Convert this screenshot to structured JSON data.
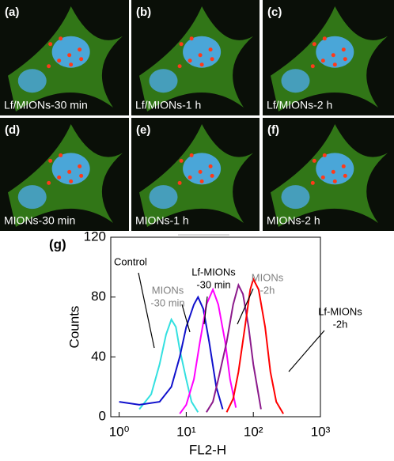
{
  "panels": [
    {
      "label": "(a)",
      "caption": "Lf/MIONs-30 min"
    },
    {
      "label": "(b)",
      "caption": "Lf/MIONs-1 h"
    },
    {
      "label": "(c)",
      "caption": "Lf/MIONs-2 h"
    },
    {
      "label": "(d)",
      "caption": "MIONs-30 min"
    },
    {
      "label": "(e)",
      "caption": "MIONs-1 h"
    },
    {
      "label": "(f)",
      "caption": "MIONs-2 h"
    }
  ],
  "chart_data": {
    "type": "line",
    "panel_label": "(g)",
    "x_label": "FL2-H",
    "y_label": "Counts",
    "xlog": true,
    "xlim": [
      0.75,
      1000
    ],
    "xticks": [
      {
        "value": 1,
        "label": "10⁰"
      },
      {
        "value": 10,
        "label": "10¹"
      },
      {
        "value": 100,
        "label": "10²"
      },
      {
        "value": 1000,
        "label": "10³"
      }
    ],
    "ylim": [
      0,
      120
    ],
    "yticks": [
      0,
      40,
      80,
      120
    ],
    "series": [
      {
        "name": "Control",
        "color": "#33e0e0",
        "x": [
          2,
          3,
          4,
          5,
          6,
          7,
          8,
          10,
          12,
          15
        ],
        "values": [
          5,
          15,
          35,
          55,
          65,
          60,
          45,
          25,
          10,
          3
        ]
      },
      {
        "name": "MIONs -30 min",
        "color": "#1010cc",
        "x": [
          1,
          2,
          4,
          6,
          8,
          10,
          13,
          15,
          18,
          22,
          28,
          35
        ],
        "values": [
          10,
          8,
          10,
          20,
          40,
          60,
          75,
          80,
          72,
          50,
          20,
          5
        ]
      },
      {
        "name": "Lf-MIONs -30 min",
        "color": "#ff00ff",
        "x": [
          8,
          10,
          13,
          16,
          20,
          25,
          30,
          38,
          45,
          55
        ],
        "values": [
          2,
          8,
          25,
          50,
          75,
          85,
          75,
          50,
          25,
          6
        ]
      },
      {
        "name": "MIONs -2h",
        "color": "#8b1a8b",
        "x": [
          20,
          25,
          30,
          40,
          50,
          60,
          70,
          85,
          100,
          130
        ],
        "values": [
          3,
          10,
          25,
          50,
          75,
          88,
          82,
          60,
          35,
          5
        ]
      },
      {
        "name": "Lf-MIONs -2h",
        "color": "#ff0000",
        "x": [
          40,
          50,
          60,
          75,
          90,
          100,
          120,
          150,
          180,
          220,
          280
        ],
        "values": [
          3,
          12,
          30,
          60,
          85,
          92,
          85,
          60,
          30,
          10,
          2
        ]
      }
    ],
    "annotations": [
      {
        "lines": [
          "Control"
        ],
        "color": "#000000"
      },
      {
        "lines": [
          "MIONs",
          "-30 min"
        ],
        "color": "#808080"
      },
      {
        "lines": [
          "Lf-MIONs",
          "-30 min"
        ],
        "color": "#000000"
      },
      {
        "lines": [
          "MIONs",
          "-2h"
        ],
        "color": "#808080"
      },
      {
        "lines": [
          "Lf-MIONs",
          "-2h"
        ],
        "color": "#000000"
      }
    ]
  }
}
